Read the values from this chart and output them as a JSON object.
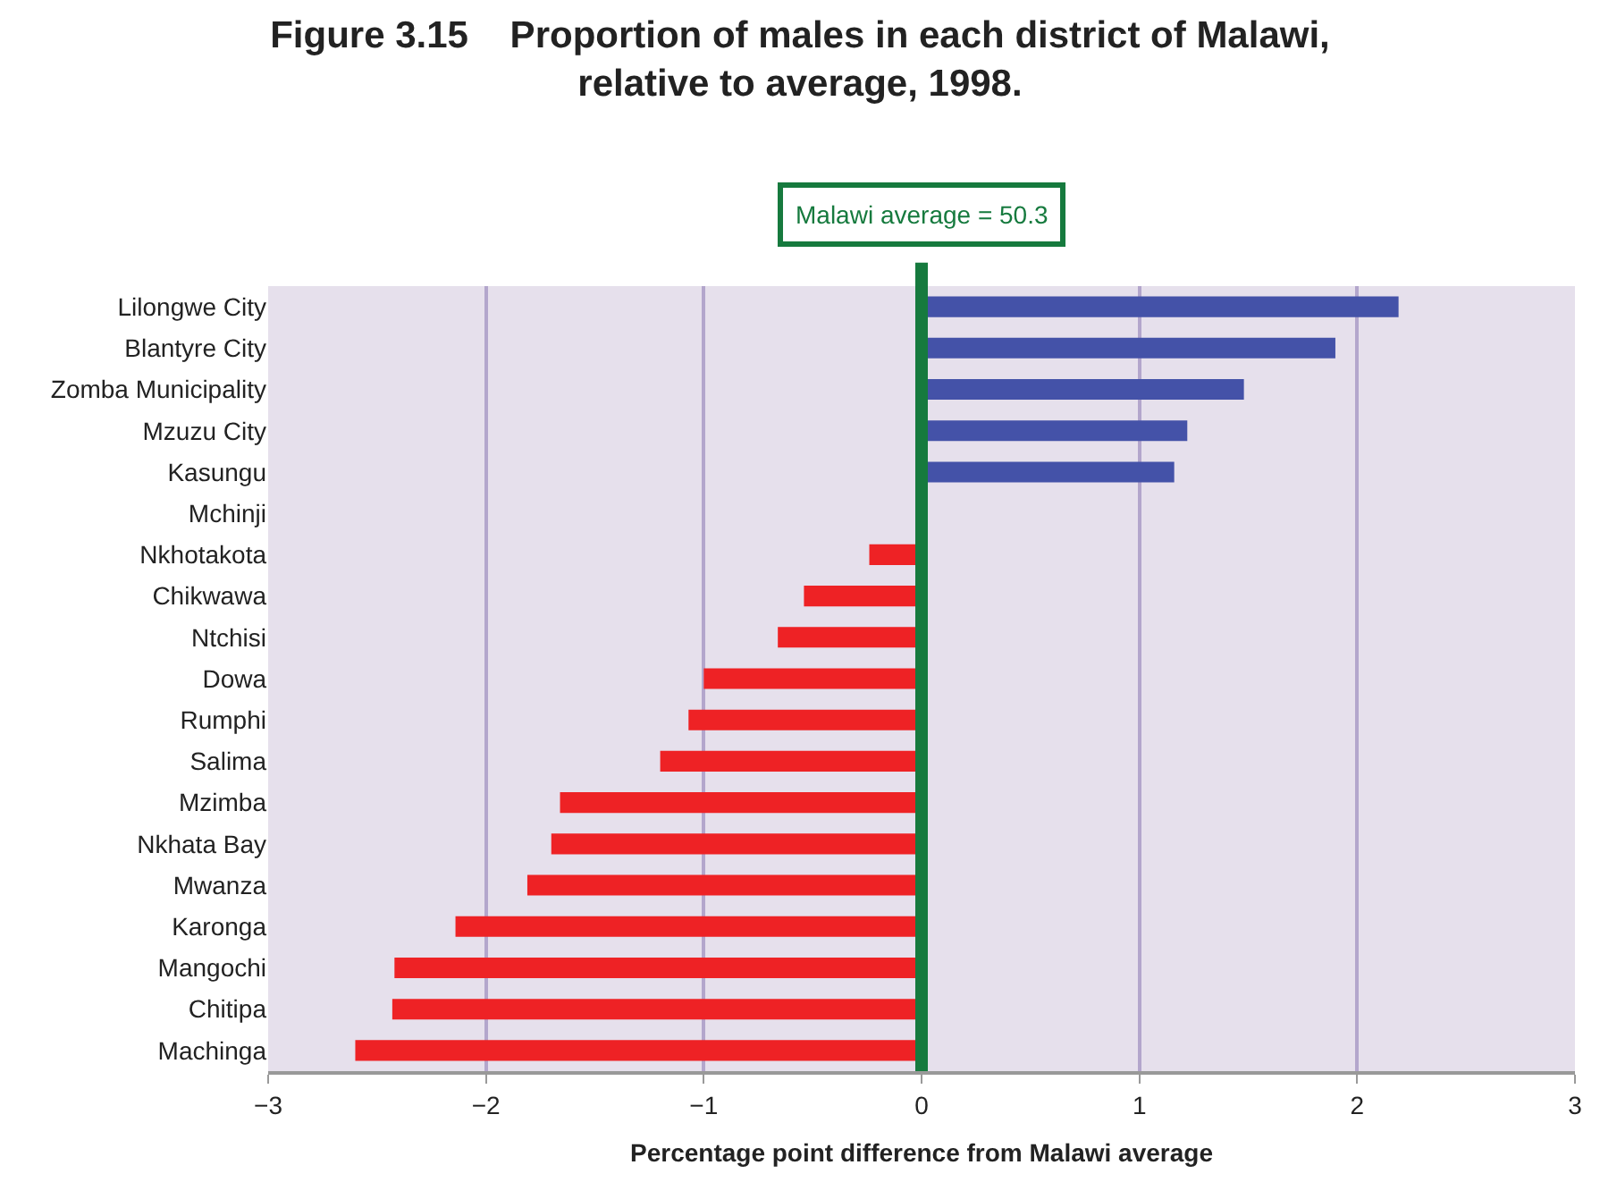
{
  "chart_data": {
    "type": "bar",
    "orientation": "horizontal",
    "title": "Figure 3.15    Proportion of males in each district of Malawi, relative to average, 1998.",
    "xlabel": "Percentage point difference from Malawi average",
    "categories": [
      "Lilongwe City",
      "Blantyre City",
      "Zomba Municipality",
      "Mzuzu City",
      "Kasungu",
      "Mchinji",
      "Nkhotakota",
      "Chikwawa",
      "Ntchisi",
      "Dowa",
      "Rumphi",
      "Salima",
      "Mzimba",
      "Nkhata Bay",
      "Mwanza",
      "Karonga",
      "Mangochi",
      "Chitipa",
      "Machinga"
    ],
    "values": [
      2.19,
      1.9,
      1.48,
      1.22,
      1.16,
      0,
      -0.24,
      -0.54,
      -0.66,
      -1.0,
      -1.07,
      -1.2,
      -1.66,
      -1.7,
      -1.81,
      -2.14,
      -2.42,
      -2.43,
      -2.6
    ],
    "colors": [
      "#4452a8",
      "#4452a8",
      "#4452a8",
      "#4452a8",
      "#4452a8",
      "#4452a8",
      "#ee2225",
      "#ee2225",
      "#ee2225",
      "#ee2225",
      "#ee2225",
      "#ee2225",
      "#ee2225",
      "#ee2225",
      "#ee2225",
      "#ee2225",
      "#ee2225",
      "#ee2225",
      "#ee2225"
    ],
    "xlim": [
      -3,
      3
    ],
    "xticks": [
      {
        "value": -3,
        "label": "−3"
      },
      {
        "value": -2,
        "label": "−2"
      },
      {
        "value": -1,
        "label": "−1"
      },
      0,
      1,
      2,
      3
    ],
    "grid": "x",
    "annotations": [
      "Malawi average = 50.3"
    ],
    "ref_lines": [
      {
        "axis": "x",
        "value": 0,
        "color": "#167a3e"
      }
    ]
  }
}
